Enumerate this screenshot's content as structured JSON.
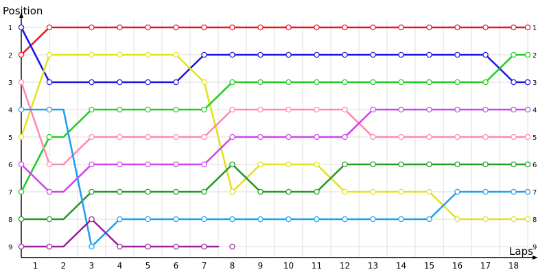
{
  "chart_data": {
    "type": "line",
    "ylabel": "Position",
    "xlabel": "Laps",
    "x_ticks": [
      "1",
      "2",
      "3",
      "4",
      "5",
      "6",
      "7",
      "8",
      "9",
      "10",
      "11",
      "12",
      "13",
      "14",
      "15",
      "16",
      "17",
      "18"
    ],
    "y_ticks": [
      "1",
      "2",
      "3",
      "4",
      "5",
      "6",
      "7",
      "8",
      "9"
    ],
    "right_labels": [
      "1",
      "2",
      "3",
      "4",
      "5",
      "6",
      "7",
      "8",
      "9"
    ],
    "ylim": [
      1,
      9
    ],
    "y_inverted": true,
    "grid": true,
    "series": [
      {
        "color": "#e8141e",
        "points": [
          [
            0,
            2
          ],
          [
            1,
            1
          ],
          [
            2,
            1
          ],
          [
            3,
            1
          ],
          [
            4,
            1
          ],
          [
            5,
            1
          ],
          [
            6,
            1
          ],
          [
            7,
            1
          ],
          [
            8,
            1
          ],
          [
            9,
            1
          ],
          [
            10,
            1
          ],
          [
            11,
            1
          ],
          [
            12,
            1
          ],
          [
            13,
            1
          ],
          [
            14,
            1
          ],
          [
            15,
            1
          ],
          [
            16,
            1
          ],
          [
            17,
            1
          ],
          [
            18,
            1
          ]
        ]
      },
      {
        "color": "#1818e0",
        "points": [
          [
            0,
            1
          ],
          [
            1,
            3
          ],
          [
            2,
            3
          ],
          [
            3,
            3
          ],
          [
            4,
            3
          ],
          [
            5,
            3
          ],
          [
            6,
            2
          ],
          [
            7,
            2
          ],
          [
            8,
            2
          ],
          [
            9,
            2
          ],
          [
            10,
            2
          ],
          [
            11,
            2
          ],
          [
            12,
            2
          ],
          [
            13,
            2
          ],
          [
            14,
            2
          ],
          [
            15,
            2
          ],
          [
            16,
            2
          ],
          [
            17,
            3
          ],
          [
            18,
            3
          ]
        ]
      },
      {
        "color": "#e2e21e",
        "points": [
          [
            0,
            5
          ],
          [
            1,
            2
          ],
          [
            2,
            2
          ],
          [
            3,
            2
          ],
          [
            4,
            2
          ],
          [
            5,
            2
          ],
          [
            6,
            3
          ],
          [
            7,
            7
          ],
          [
            8,
            6
          ],
          [
            9,
            6
          ],
          [
            10,
            6
          ],
          [
            11,
            7
          ],
          [
            12,
            7
          ],
          [
            13,
            7
          ],
          [
            14,
            7
          ],
          [
            15,
            8
          ],
          [
            16,
            8
          ],
          [
            17,
            8
          ],
          [
            18,
            8
          ]
        ]
      },
      {
        "color": "#22cc22",
        "points": [
          [
            0,
            7
          ],
          [
            1,
            5
          ],
          [
            2,
            4
          ],
          [
            3,
            4
          ],
          [
            4,
            4
          ],
          [
            5,
            4
          ],
          [
            6,
            4
          ],
          [
            7,
            3
          ],
          [
            8,
            3
          ],
          [
            9,
            3
          ],
          [
            10,
            3
          ],
          [
            11,
            3
          ],
          [
            12,
            3
          ],
          [
            13,
            3
          ],
          [
            14,
            3
          ],
          [
            15,
            3
          ],
          [
            16,
            3
          ],
          [
            17,
            2
          ],
          [
            18,
            2
          ]
        ]
      },
      {
        "color": "#ff88b0",
        "points": [
          [
            0,
            3
          ],
          [
            1,
            6
          ],
          [
            2,
            5
          ],
          [
            3,
            5
          ],
          [
            4,
            5
          ],
          [
            5,
            5
          ],
          [
            6,
            5
          ],
          [
            7,
            4
          ],
          [
            8,
            4
          ],
          [
            9,
            4
          ],
          [
            10,
            4
          ],
          [
            11,
            4
          ],
          [
            12,
            5
          ],
          [
            13,
            5
          ],
          [
            14,
            5
          ],
          [
            15,
            5
          ],
          [
            16,
            5
          ],
          [
            17,
            5
          ],
          [
            18,
            5
          ]
        ]
      },
      {
        "color": "#cc44ee",
        "points": [
          [
            0,
            6
          ],
          [
            1,
            7
          ],
          [
            2,
            6
          ],
          [
            3,
            6
          ],
          [
            4,
            6
          ],
          [
            5,
            6
          ],
          [
            6,
            6
          ],
          [
            7,
            5
          ],
          [
            8,
            5
          ],
          [
            9,
            5
          ],
          [
            10,
            5
          ],
          [
            11,
            5
          ],
          [
            12,
            4
          ],
          [
            13,
            4
          ],
          [
            14,
            4
          ],
          [
            15,
            4
          ],
          [
            16,
            4
          ],
          [
            17,
            4
          ],
          [
            18,
            4
          ]
        ]
      },
      {
        "color": "#229922",
        "points": [
          [
            0,
            8
          ],
          [
            1,
            8
          ],
          [
            2,
            7
          ],
          [
            3,
            7
          ],
          [
            4,
            7
          ],
          [
            5,
            7
          ],
          [
            6,
            7
          ],
          [
            7,
            6
          ],
          [
            8,
            7
          ],
          [
            9,
            7
          ],
          [
            10,
            7
          ],
          [
            11,
            6
          ],
          [
            12,
            6
          ],
          [
            13,
            6
          ],
          [
            14,
            6
          ],
          [
            15,
            6
          ],
          [
            16,
            6
          ],
          [
            17,
            6
          ],
          [
            18,
            6
          ]
        ]
      },
      {
        "color": "#1ca0f0",
        "points": [
          [
            0,
            4
          ],
          [
            1,
            4
          ],
          [
            2,
            9
          ],
          [
            3,
            8
          ],
          [
            4,
            8
          ],
          [
            5,
            8
          ],
          [
            6,
            8
          ],
          [
            7,
            8
          ],
          [
            8,
            8
          ],
          [
            9,
            8
          ],
          [
            10,
            8
          ],
          [
            11,
            8
          ],
          [
            12,
            8
          ],
          [
            13,
            8
          ],
          [
            14,
            8
          ],
          [
            15,
            7
          ],
          [
            16,
            7
          ],
          [
            17,
            7
          ],
          [
            18,
            7
          ]
        ]
      },
      {
        "color": "#992299",
        "points": [
          [
            0,
            9
          ],
          [
            1,
            9
          ],
          [
            2,
            8
          ],
          [
            3,
            9
          ],
          [
            4,
            9
          ],
          [
            5,
            9
          ],
          [
            6,
            9
          ],
          [
            7,
            9
          ]
        ]
      }
    ]
  }
}
